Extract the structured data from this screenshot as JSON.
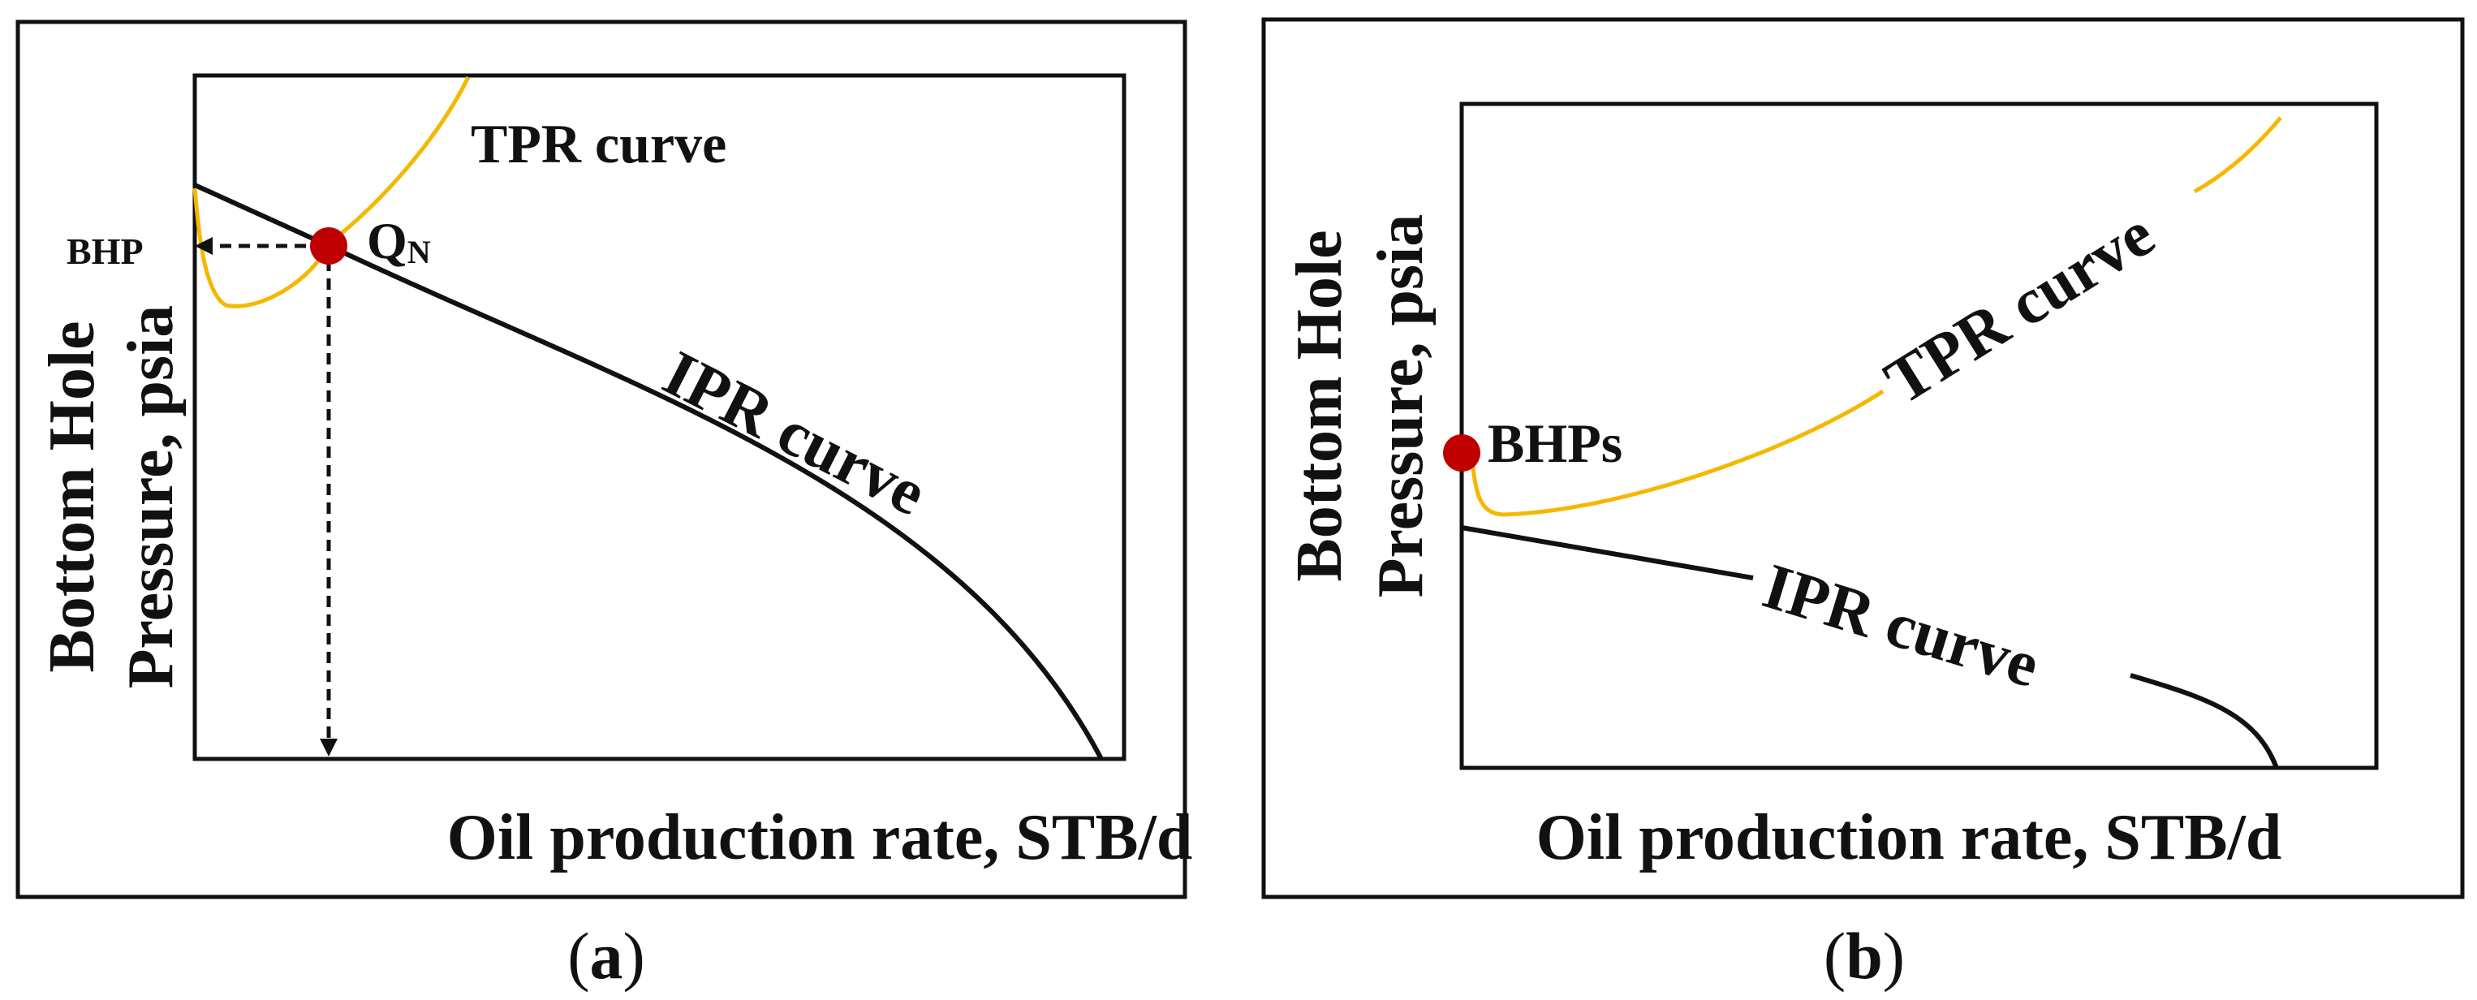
{
  "colors": {
    "ipr": "#111111",
    "tpr": "#f5b800",
    "point": "#c00000",
    "frame": "#111111"
  },
  "panels": [
    {
      "id": "a",
      "caption_letter": "a",
      "x_label": "Oil production rate, STB/d",
      "y_label_line1": "Bottom Hole",
      "y_label_line2": "Pressure, psia",
      "tpr_label": "TPR curve",
      "ipr_label": "IPR curve",
      "point_label_main": "Q",
      "point_label_sub": "N",
      "bhp_label": "BHP"
    },
    {
      "id": "b",
      "caption_letter": "b",
      "x_label": "Oil production rate, STB/d",
      "y_label_line1": "Bottom Hole",
      "y_label_line2": "Pressure, psia",
      "tpr_label": "TPR curve",
      "ipr_label": "IPR curve",
      "point_label": "BHPs"
    }
  ]
}
